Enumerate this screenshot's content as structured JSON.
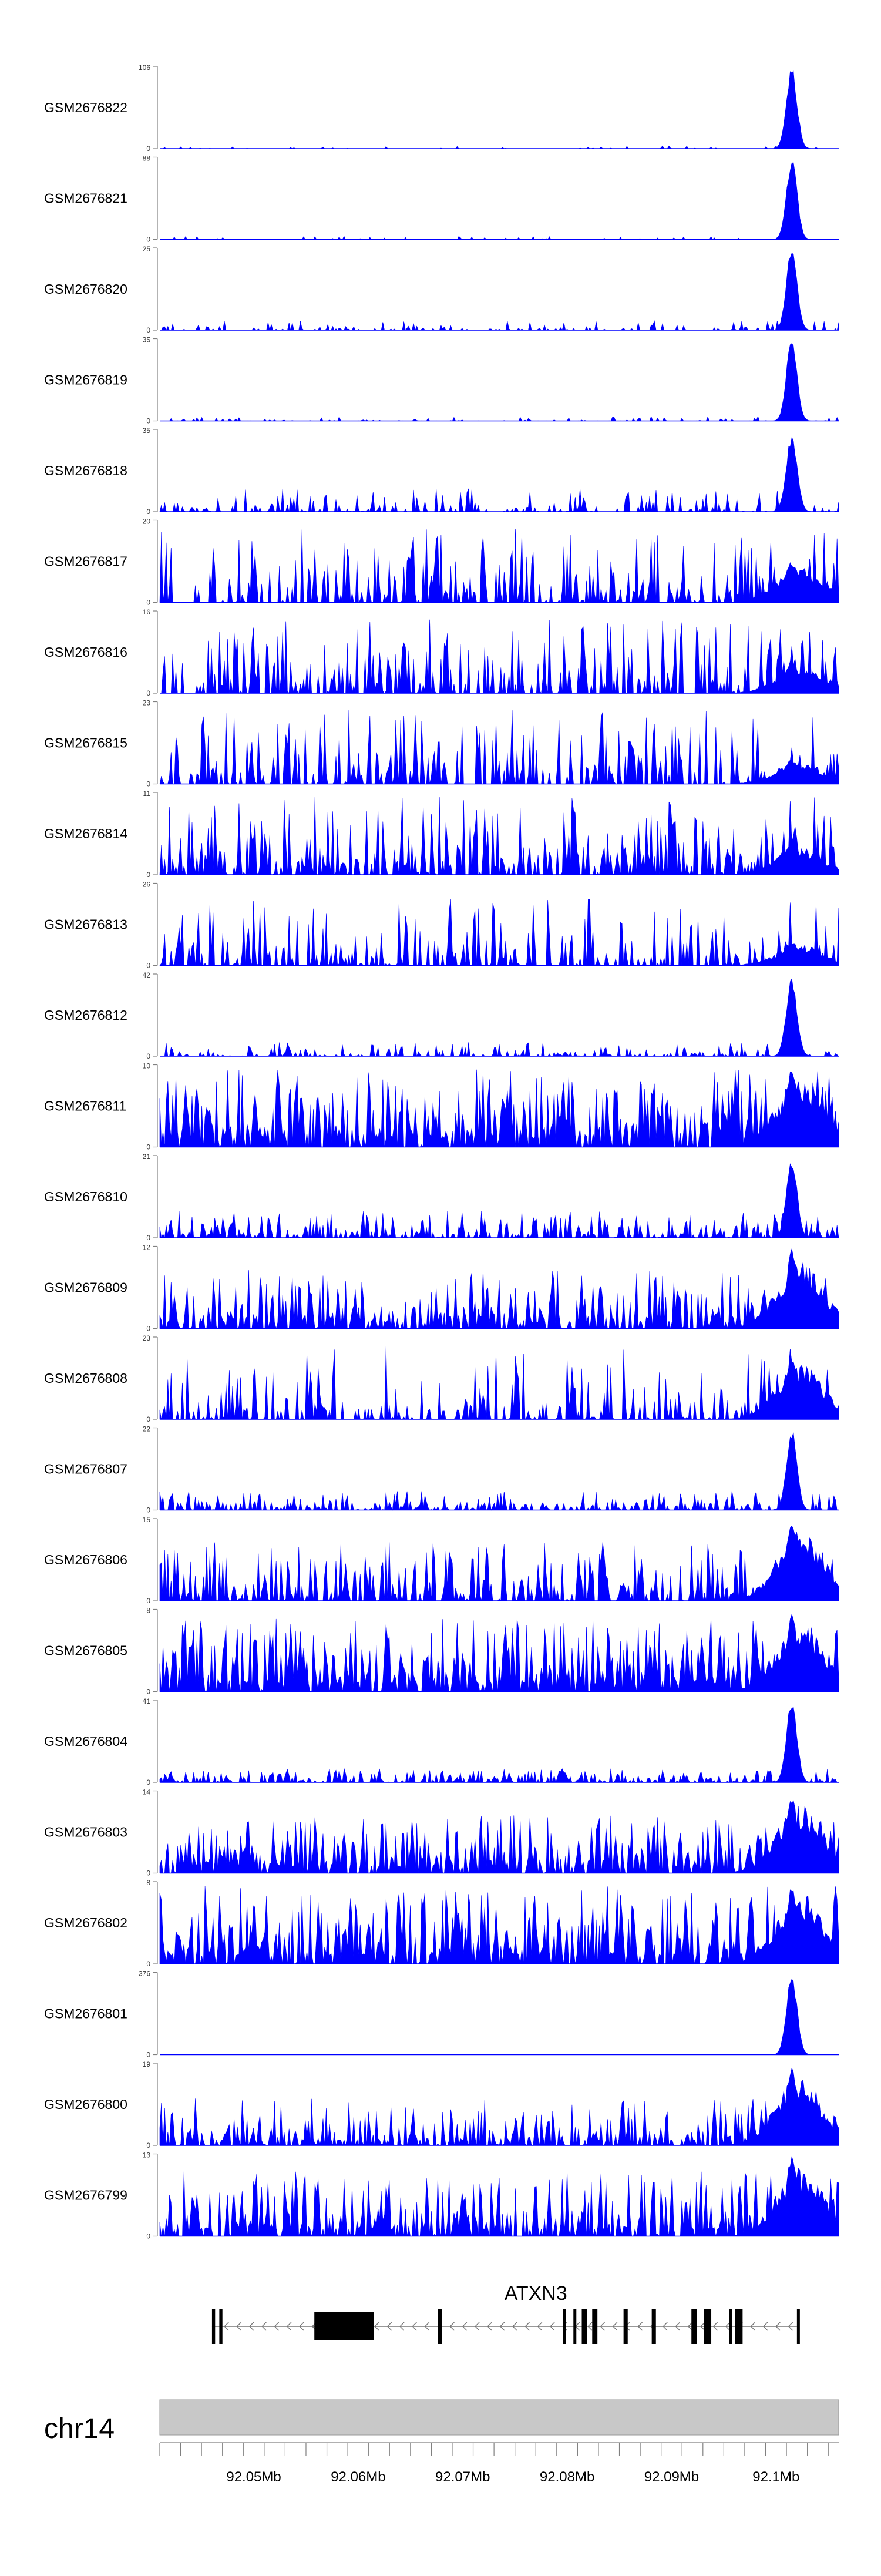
{
  "chart_data": {
    "type": "area",
    "title": "",
    "xlabel": "",
    "ylabel": "",
    "region": {
      "chrom": "chr14",
      "start": 92041000,
      "end": 92106000
    },
    "x_ticks": [
      92050000,
      92060000,
      92070000,
      92080000,
      92090000,
      92100000
    ],
    "x_tick_labels": [
      "92.05Mb",
      "92.06Mb",
      "92.07Mb",
      "92.08Mb",
      "92.09Mb",
      "92.1Mb"
    ],
    "peak_position": 92101500,
    "series": [
      {
        "name": "GSM2676822",
        "ymax": 106,
        "peak": 1.0,
        "baseline": 0.04,
        "density": 0.1
      },
      {
        "name": "GSM2676821",
        "ymax": 88,
        "peak": 1.0,
        "baseline": 0.04,
        "density": 0.1
      },
      {
        "name": "GSM2676820",
        "ymax": 25,
        "peak": 1.0,
        "baseline": 0.12,
        "density": 0.25
      },
      {
        "name": "GSM2676819",
        "ymax": 35,
        "peak": 1.0,
        "baseline": 0.06,
        "density": 0.18
      },
      {
        "name": "GSM2676818",
        "ymax": 35,
        "peak": 0.95,
        "baseline": 0.3,
        "density": 0.35
      },
      {
        "name": "GSM2676817",
        "ymax": 20,
        "peak": 0.5,
        "baseline": 0.95,
        "density": 0.5
      },
      {
        "name": "GSM2676816",
        "ymax": 16,
        "peak": 0.4,
        "baseline": 0.95,
        "density": 0.45
      },
      {
        "name": "GSM2676815",
        "ymax": 23,
        "peak": 0.3,
        "baseline": 0.95,
        "density": 0.42
      },
      {
        "name": "GSM2676814",
        "ymax": 11,
        "peak": 0.4,
        "baseline": 1.0,
        "density": 0.55
      },
      {
        "name": "GSM2676813",
        "ymax": 26,
        "peak": 0.3,
        "baseline": 0.85,
        "density": 0.4
      },
      {
        "name": "GSM2676812",
        "ymax": 42,
        "peak": 0.95,
        "baseline": 0.18,
        "density": 0.35
      },
      {
        "name": "GSM2676811",
        "ymax": 10,
        "peak": 1.0,
        "baseline": 1.0,
        "density": 0.75
      },
      {
        "name": "GSM2676810",
        "ymax": 21,
        "peak": 1.0,
        "baseline": 0.35,
        "density": 0.55
      },
      {
        "name": "GSM2676809",
        "ymax": 12,
        "peak": 1.0,
        "baseline": 0.75,
        "density": 0.65
      },
      {
        "name": "GSM2676808",
        "ymax": 23,
        "peak": 0.8,
        "baseline": 0.95,
        "density": 0.4
      },
      {
        "name": "GSM2676807",
        "ymax": 22,
        "peak": 1.0,
        "baseline": 0.25,
        "density": 0.55
      },
      {
        "name": "GSM2676806",
        "ymax": 15,
        "peak": 1.0,
        "baseline": 0.75,
        "density": 0.6
      },
      {
        "name": "GSM2676805",
        "ymax": 8,
        "peak": 1.0,
        "baseline": 0.95,
        "density": 0.85
      },
      {
        "name": "GSM2676804",
        "ymax": 41,
        "peak": 1.0,
        "baseline": 0.18,
        "density": 0.55
      },
      {
        "name": "GSM2676803",
        "ymax": 14,
        "peak": 1.0,
        "baseline": 0.75,
        "density": 0.7
      },
      {
        "name": "GSM2676802",
        "ymax": 8,
        "peak": 1.0,
        "baseline": 1.0,
        "density": 0.8
      },
      {
        "name": "GSM2676801",
        "ymax": 376,
        "peak": 1.0,
        "baseline": 0.01,
        "density": 0.1
      },
      {
        "name": "GSM2676800",
        "ymax": 19,
        "peak": 1.0,
        "baseline": 0.6,
        "density": 0.6
      },
      {
        "name": "GSM2676799",
        "ymax": 13,
        "peak": 1.0,
        "baseline": 0.85,
        "density": 0.7
      }
    ],
    "gene": {
      "name": "ATXN3",
      "strand": "-",
      "start": 92046000,
      "end": 92102000,
      "exons": [
        [
          92046000,
          92046300
        ],
        [
          92046700,
          92047000
        ],
        [
          92055800,
          92061500
        ],
        [
          92067600,
          92068000
        ],
        [
          92079600,
          92079800
        ],
        [
          92080600,
          92080800
        ],
        [
          92081400,
          92081900
        ],
        [
          92082400,
          92082900
        ],
        [
          92085400,
          92085800
        ],
        [
          92088100,
          92088500
        ],
        [
          92091900,
          92092400
        ],
        [
          92093100,
          92093800
        ],
        [
          92095500,
          92095800
        ],
        [
          92096100,
          92096800
        ],
        [
          92102000,
          92102200
        ]
      ]
    },
    "ideogram_label": "chr14",
    "colors": {
      "signal": "#0000FF",
      "gene": "#000000",
      "ideogram": "#C8C8C8",
      "axis": "#808080"
    }
  }
}
